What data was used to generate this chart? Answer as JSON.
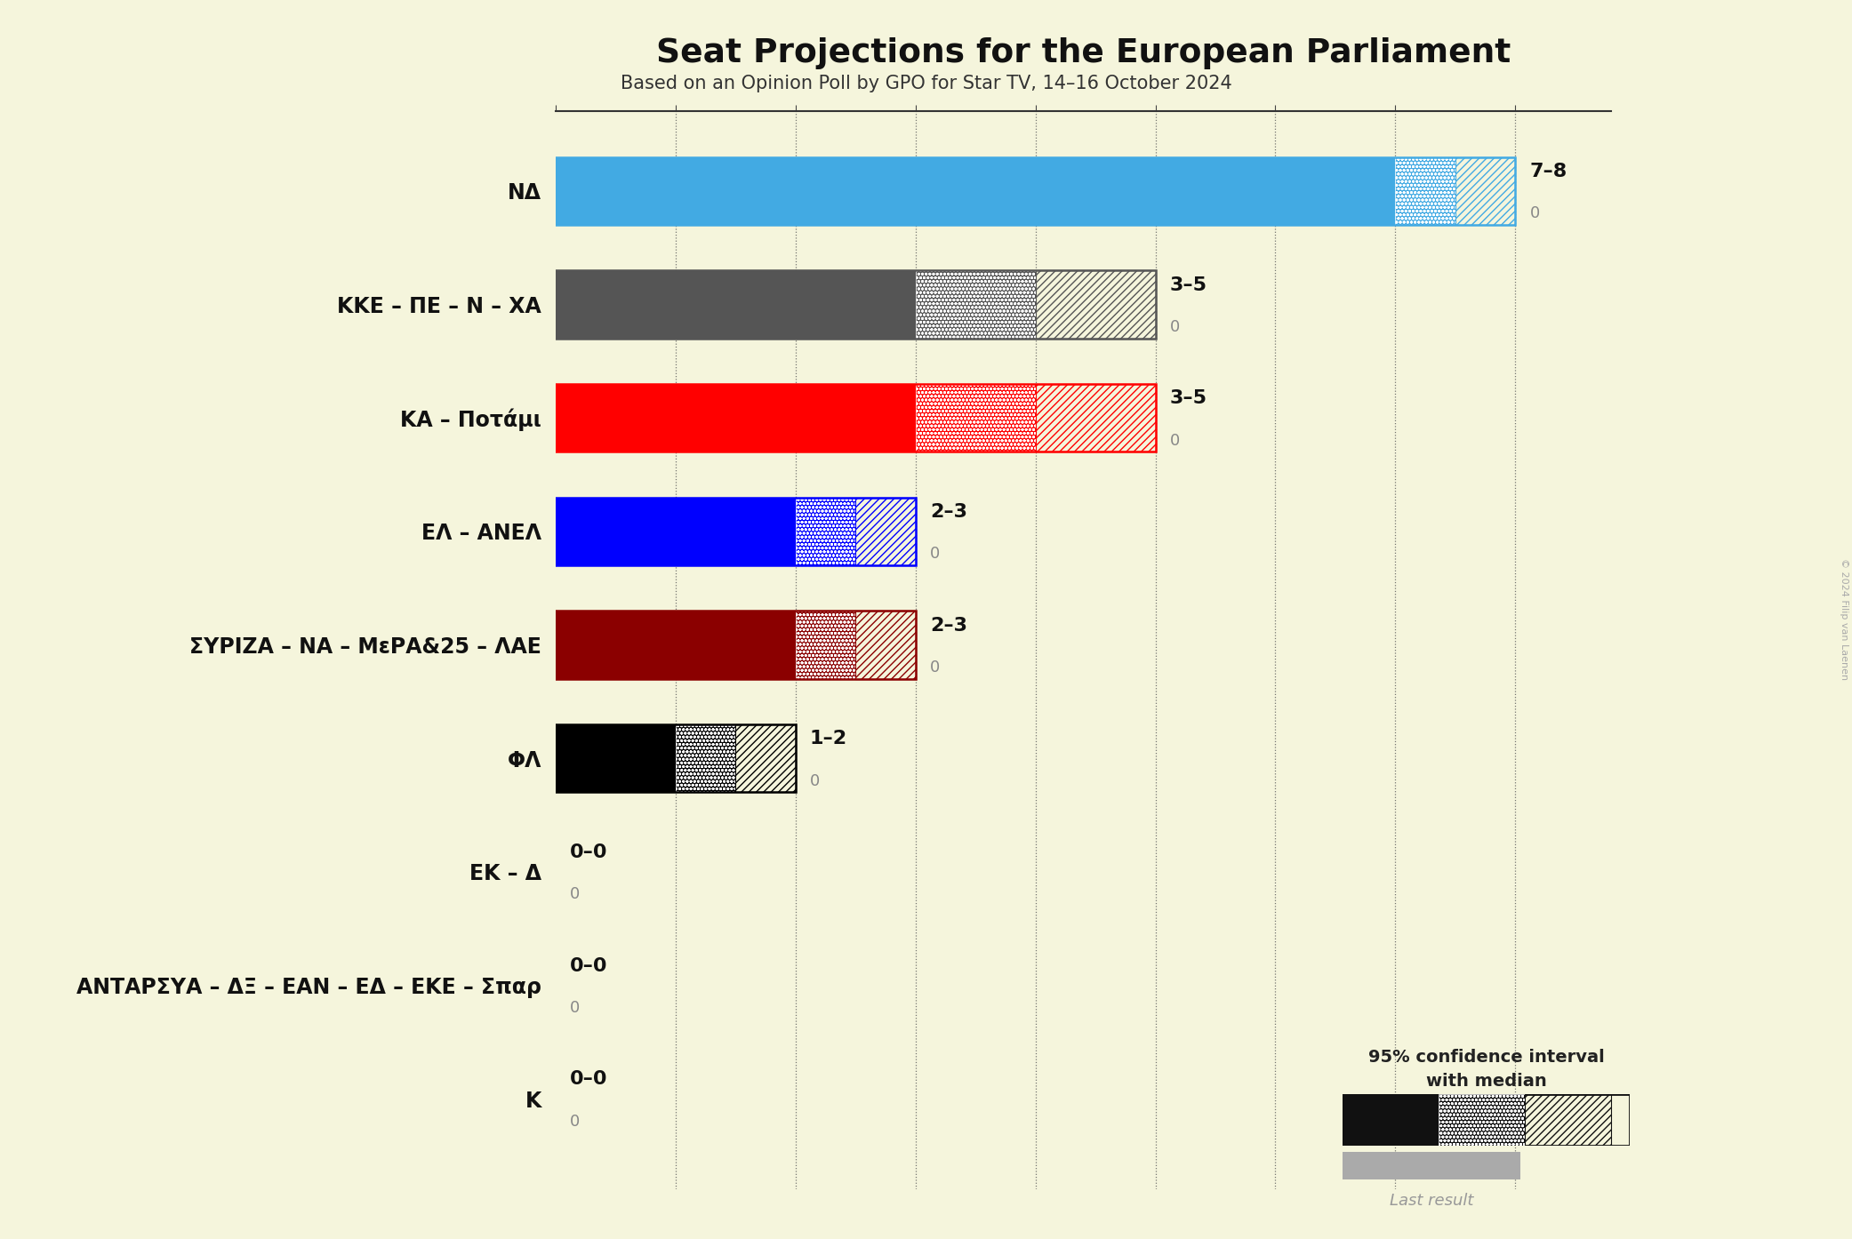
{
  "title": "Seat Projections for the European Parliament",
  "subtitle": "Based on an Opinion Poll by GPO for Star TV, 14–16 October 2024",
  "copyright": "© 2024 Filip van Laenen",
  "background_color": "#f5f5dc",
  "parties": [
    {
      "name": "NΔ",
      "color": "#42aae3",
      "median": 7,
      "low": 7,
      "high": 8,
      "last": 0
    },
    {
      "name": "KKE – ΠΕ – N – ΧΑ",
      "color": "#555555",
      "median": 3,
      "low": 3,
      "high": 5,
      "last": 0
    },
    {
      "name": "KΑ – Ποτάμι",
      "color": "#ff0000",
      "median": 3,
      "low": 3,
      "high": 5,
      "last": 0
    },
    {
      "name": "ΕΛ – ΑΝΕΛ",
      "color": "#0000ff",
      "median": 2,
      "low": 2,
      "high": 3,
      "last": 0
    },
    {
      "name": "ΣΥΡΙΖΑ – NΑ – MεΡΑ&25 – ΛΑΕ",
      "color": "#8b0000",
      "median": 2,
      "low": 2,
      "high": 3,
      "last": 0
    },
    {
      "name": "ΦΛ",
      "color": "#000000",
      "median": 1,
      "low": 1,
      "high": 2,
      "last": 0
    },
    {
      "name": "ΕK – Δ",
      "color": "#555555",
      "median": 0,
      "low": 0,
      "high": 0,
      "last": 0
    },
    {
      "name": "ΑΝΤΑΡΣΥΑ – ΔΞ – ΕΑΝ – ΕΔ – ΕKΕ – Σπαρ",
      "color": "#555555",
      "median": 0,
      "low": 0,
      "high": 0,
      "last": 0
    },
    {
      "name": "K",
      "color": "#555555",
      "median": 0,
      "low": 0,
      "high": 0,
      "last": 0
    }
  ],
  "xlim": [
    0,
    8.8
  ],
  "xticks": [
    0,
    1,
    2,
    3,
    4,
    5,
    6,
    7,
    8
  ],
  "legend_text1": "95% confidence interval",
  "legend_text2": "with median",
  "legend_last": "Last result"
}
